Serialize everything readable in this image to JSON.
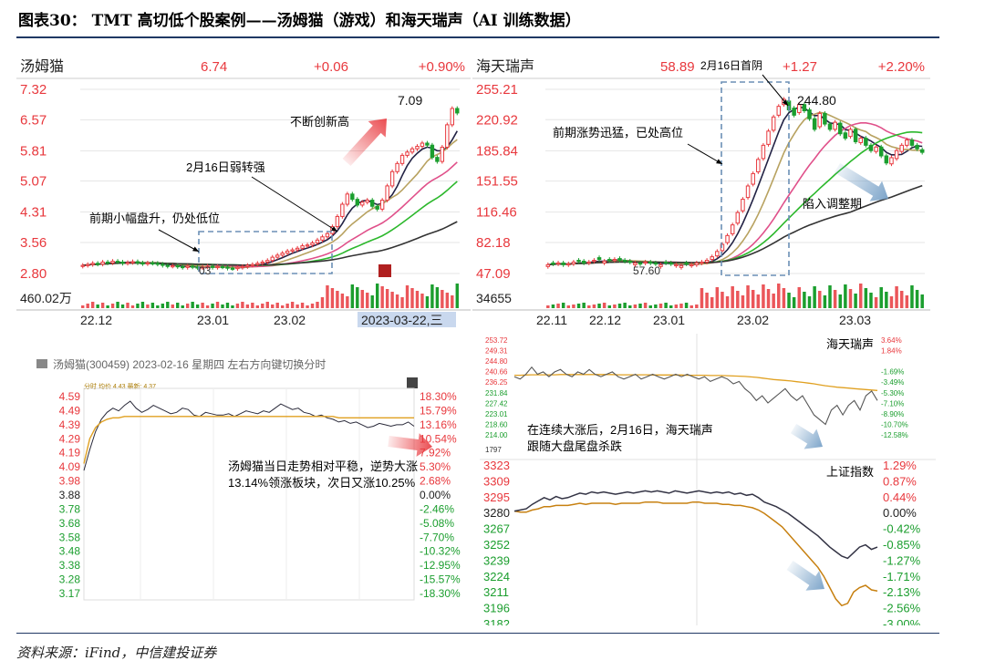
{
  "title": "图表30：  TMT 高切低个股案例——汤姆猫（游戏）和海天瑞声（AI 训练数据）",
  "source": "资料来源：iFind，中信建投证券",
  "colors": {
    "up": "#e8383d",
    "down": "#1b9e2e",
    "ma1": "#222244",
    "ma2": "#b8a260",
    "ma3": "#e0508a",
    "ma4": "#2cb82c",
    "ma5": "#333333",
    "box": "#6b8fb5",
    "intraday": "#e0a020"
  },
  "chart_data": [
    {
      "id": "tomcat-daily",
      "type": "candlestick",
      "name": "汤姆猫",
      "price": "6.74",
      "change": "+0.06",
      "pct": "+0.90%",
      "y_ticks": [
        "7.32",
        "6.57",
        "5.81",
        "5.07",
        "4.31",
        "3.56",
        "2.80"
      ],
      "ylim": [
        2.8,
        7.32
      ],
      "x_ticks": [
        "22.12",
        "23.01",
        "23.02",
        "2023-03-22,三"
      ],
      "volume_label": "460.02万",
      "peak_label": "7.09",
      "box_label": "03",
      "annotations": [
        "不断创新高",
        "2月16日弱转强",
        "前期小幅盘升，仍处低位"
      ],
      "closes": [
        3.0,
        3.02,
        3.05,
        3.03,
        3.08,
        3.06,
        3.1,
        3.08,
        3.05,
        3.07,
        3.09,
        3.06,
        3.04,
        3.06,
        3.05,
        3.03,
        3.0,
        2.98,
        2.99,
        2.97,
        2.95,
        2.98,
        2.96,
        2.94,
        2.96,
        2.98,
        2.95,
        2.97,
        2.96,
        2.93,
        2.92,
        2.95,
        2.97,
        3.0,
        3.02,
        3.05,
        3.08,
        3.12,
        3.2,
        3.25,
        3.3,
        3.35,
        3.38,
        3.42,
        3.48,
        3.5,
        3.55,
        3.62,
        3.7,
        3.78,
        3.95,
        4.2,
        4.5,
        4.75,
        4.62,
        4.48,
        4.55,
        4.6,
        4.45,
        4.38,
        4.6,
        4.95,
        5.3,
        5.5,
        5.7,
        5.78,
        5.86,
        5.92,
        6.0,
        5.95,
        5.65,
        5.55,
        5.9,
        6.45,
        6.85,
        6.74
      ]
    },
    {
      "id": "haitian-daily",
      "type": "candlestick",
      "name": "海天瑞声",
      "price": "58.89",
      "date_tag": "2月16日首阴",
      "change": "+1.27",
      "pct": "+2.20%",
      "y_ticks": [
        "255.21",
        "220.92",
        "185.84",
        "151.55",
        "116.46",
        "82.18",
        "47.09"
      ],
      "ylim": [
        47.09,
        255.21
      ],
      "x_ticks": [
        "22.11",
        "22.12",
        "23.01",
        "23.02",
        "23.03"
      ],
      "volume_label": "34655",
      "peak_label": "244.80",
      "box_label": "57.60",
      "annotations": [
        "前期涨势迅猛，已处高位",
        "陷入调整期"
      ],
      "closes": [
        57,
        58,
        59,
        57,
        58,
        60,
        61,
        59,
        60,
        62,
        63,
        61,
        62,
        63,
        62,
        61,
        60,
        59,
        58,
        60,
        59,
        58,
        57,
        59,
        58,
        57,
        56,
        58,
        57,
        59,
        60,
        62,
        66,
        72,
        80,
        90,
        102,
        116,
        131,
        146,
        160,
        176,
        192,
        208,
        224,
        236,
        244,
        232,
        226,
        238,
        231,
        222,
        210,
        228,
        216,
        210,
        218,
        205,
        200,
        210,
        196,
        200,
        192,
        186,
        190,
        180,
        172,
        178,
        186,
        192,
        198,
        192,
        188,
        184
      ],
      "opens_offset": [
        -2,
        1,
        -1,
        2,
        -1,
        -2,
        1,
        2,
        -1,
        -1,
        2,
        -2,
        1,
        -1,
        2,
        1,
        1,
        -2,
        1,
        -1,
        1,
        1,
        -2,
        1,
        1,
        -1,
        -2,
        1,
        -1,
        -2,
        -1,
        -2,
        -3,
        -5,
        -7,
        -8,
        -10,
        -12,
        -13,
        -13,
        -12,
        -14,
        -15,
        -15,
        -15,
        -10,
        -6,
        10,
        8,
        -9,
        7,
        10,
        12,
        -15,
        12,
        6,
        -8,
        12,
        6,
        -8,
        14,
        -5,
        8,
        6,
        -5,
        10,
        8,
        -7,
        -9,
        -7,
        -6,
        6,
        4,
        3
      ]
    },
    {
      "id": "tomcat-intraday",
      "type": "line",
      "header": "汤姆猫(300459) 2023-02-16 星期四    左右方向键切换分时",
      "legend": "分时 均价 4.43  最新: 4.37",
      "y_ticks_left": [
        "4.59",
        "4.49",
        "4.39",
        "4.29",
        "4.19",
        "4.09",
        "3.98",
        "3.88",
        "3.78",
        "3.68",
        "3.58",
        "3.48",
        "3.38",
        "3.28",
        "3.17"
      ],
      "y_ticks_right": [
        "18.30%",
        "15.79%",
        "13.16%",
        "10.54%",
        "7.92%",
        "5.30%",
        "2.68%",
        "0.00%",
        "-2.46%",
        "-5.08%",
        "-7.70%",
        "-10.32%",
        "-12.95%",
        "-15.57%",
        "-18.30%"
      ],
      "ylim": [
        3.17,
        4.59
      ],
      "annotations": [
        "汤姆猫当日走势相对平稳，逆势大涨",
        "13.14%领涨板块，次日又涨10.25%"
      ],
      "price": [
        4.05,
        4.2,
        4.33,
        4.42,
        4.47,
        4.5,
        4.48,
        4.52,
        4.55,
        4.5,
        4.47,
        4.49,
        4.52,
        4.5,
        4.48,
        4.46,
        4.47,
        4.5,
        4.49,
        4.45,
        4.44,
        4.47,
        4.46,
        4.45,
        4.45,
        4.46,
        4.44,
        4.46,
        4.48,
        4.47,
        4.46,
        4.48,
        4.47,
        4.5,
        4.53,
        4.51,
        4.49,
        4.5,
        4.47,
        4.46,
        4.44,
        4.45,
        4.43,
        4.42,
        4.4,
        4.41,
        4.39,
        4.4,
        4.38,
        4.36,
        4.37,
        4.39,
        4.38,
        4.37,
        4.38,
        4.38,
        4.4,
        4.37
      ],
      "avg": [
        4.1,
        4.28,
        4.36,
        4.4,
        4.42,
        4.43,
        4.43,
        4.44,
        4.44,
        4.44,
        4.44,
        4.44,
        4.44,
        4.44,
        4.44,
        4.44,
        4.44,
        4.44,
        4.44,
        4.44,
        4.44,
        4.44,
        4.44,
        4.44,
        4.44,
        4.44,
        4.44,
        4.44,
        4.44,
        4.44,
        4.44,
        4.44,
        4.44,
        4.44,
        4.44,
        4.44,
        4.44,
        4.44,
        4.44,
        4.44,
        4.44,
        4.44,
        4.44,
        4.44,
        4.43,
        4.43,
        4.43,
        4.43,
        4.43,
        4.43,
        4.43,
        4.43,
        4.43,
        4.43,
        4.43,
        4.43,
        4.43,
        4.43
      ]
    },
    {
      "id": "haitian-intraday",
      "type": "line",
      "name": "海天瑞声",
      "y_ticks_left": [
        "253.72",
        "249.31",
        "244.80",
        "240.66",
        "236.25",
        "231.84",
        "227.42",
        "223.01",
        "218.60",
        "214.00"
      ],
      "y_ticks_right": [
        "3.64%",
        "1.84%",
        "",
        "-1.69%",
        "-3.49%",
        "-5.30%",
        "-7.10%",
        "-8.90%",
        "-10.70%",
        "-12.58%"
      ],
      "ylim": [
        214.0,
        253.72
      ],
      "volume_label": "1797",
      "annotations": [
        "在连续大涨后，2月16日，海天瑞声",
        "跟随大盘尾盘杀跌"
      ],
      "price": [
        238,
        237,
        239,
        242,
        239,
        240,
        238,
        240,
        241,
        239,
        238,
        240,
        239,
        241,
        239,
        238,
        239,
        240,
        238,
        237,
        238,
        239,
        237,
        238,
        239,
        238,
        237,
        238,
        239,
        238,
        239,
        238,
        237,
        238,
        236,
        237,
        238,
        237,
        235,
        236,
        233,
        231,
        228,
        230,
        227,
        229,
        231,
        233,
        230,
        228,
        230,
        226,
        222,
        220,
        218,
        224,
        226,
        222,
        226,
        228,
        224,
        230,
        232,
        228
      ],
      "avg": [
        238.6,
        238.6,
        238.7,
        238.8,
        238.8,
        238.8,
        238.8,
        238.8,
        238.9,
        238.9,
        238.9,
        238.9,
        238.9,
        238.9,
        238.9,
        238.9,
        238.9,
        238.9,
        238.8,
        238.8,
        238.8,
        238.8,
        238.8,
        238.8,
        238.7,
        238.7,
        238.7,
        238.7,
        238.7,
        238.7,
        238.6,
        238.6,
        238.6,
        238.6,
        238.5,
        238.5,
        238.5,
        238.4,
        238.3,
        238.2,
        238.1,
        237.9,
        237.7,
        237.4,
        237.1,
        236.8,
        236.6,
        236.4,
        236.2,
        235.9,
        235.6,
        235.3,
        235.0,
        234.6,
        234.2,
        233.9,
        233.6,
        233.4,
        233.2,
        233.0,
        232.8,
        232.6,
        232.4,
        232.2
      ]
    },
    {
      "id": "sse-intraday",
      "type": "line",
      "name": "上证指数",
      "y_ticks_left": [
        "3323",
        "3309",
        "3295",
        "3280",
        "3267",
        "3252",
        "3239",
        "3224",
        "3211",
        "3196",
        "3182"
      ],
      "y_ticks_right": [
        "1.29%",
        "0.87%",
        "0.44%",
        "0.00%",
        "-0.42%",
        "-0.85%",
        "-1.27%",
        "-1.71%",
        "-2.13%",
        "-2.56%",
        "-3.00%"
      ],
      "ylim": [
        3182,
        3323
      ],
      "index": [
        3282,
        3283,
        3284,
        3288,
        3291,
        3294,
        3292,
        3295,
        3293,
        3294,
        3296,
        3298,
        3297,
        3299,
        3298,
        3299,
        3298,
        3297,
        3298,
        3299,
        3298,
        3299,
        3300,
        3299,
        3300,
        3299,
        3298,
        3300,
        3299,
        3298,
        3299,
        3300,
        3299,
        3298,
        3299,
        3298,
        3299,
        3297,
        3298,
        3296,
        3297,
        3294,
        3290,
        3288,
        3286,
        3283,
        3280,
        3276,
        3272,
        3268,
        3264,
        3260,
        3255,
        3250,
        3246,
        3242,
        3240,
        3245,
        3250,
        3252,
        3248,
        3250
      ],
      "avg": [
        3282,
        3281,
        3281,
        3283,
        3284,
        3286,
        3286,
        3287,
        3287,
        3287,
        3288,
        3289,
        3288,
        3289,
        3289,
        3289,
        3289,
        3288,
        3289,
        3289,
        3289,
        3289,
        3290,
        3290,
        3290,
        3289,
        3289,
        3289,
        3289,
        3289,
        3290,
        3290,
        3289,
        3289,
        3289,
        3288,
        3288,
        3287,
        3287,
        3286,
        3285,
        3283,
        3280,
        3276,
        3272,
        3268,
        3262,
        3256,
        3250,
        3244,
        3238,
        3232,
        3224,
        3214,
        3204,
        3198,
        3200,
        3210,
        3214,
        3216,
        3212,
        3211
      ]
    }
  ]
}
